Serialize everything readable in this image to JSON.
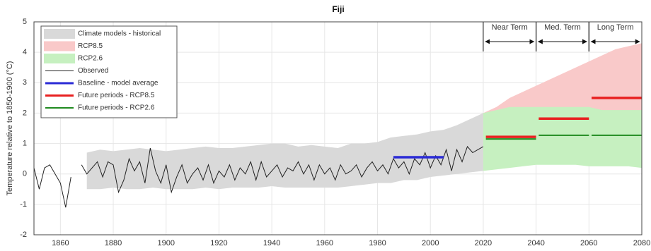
{
  "chart_data": {
    "type": "line",
    "title": "Fiji",
    "y_label": "Temperature relative to 1850-1900 (°C)",
    "xlim": [
      1850,
      2080
    ],
    "ylim": [
      -2,
      5
    ],
    "xticks": [
      1860,
      1880,
      1900,
      1920,
      1940,
      1960,
      1980,
      2000,
      2020,
      2040,
      2060,
      2080
    ],
    "yticks": [
      -2,
      -1,
      0,
      1,
      2,
      3,
      4,
      5
    ],
    "grid": true,
    "legend": "upper left",
    "periods": [
      {
        "label": "Near Term",
        "start": 2020,
        "end": 2040
      },
      {
        "label": "Med. Term",
        "start": 2040,
        "end": 2060
      },
      {
        "label": "Long Term",
        "start": 2060,
        "end": 2080
      }
    ],
    "series": [
      {
        "name": "Climate models - historical",
        "kind": "band",
        "color": "#d9d9d9",
        "x": [
          1870,
          1875,
          1880,
          1885,
          1890,
          1895,
          1900,
          1905,
          1910,
          1915,
          1920,
          1925,
          1930,
          1935,
          1940,
          1945,
          1950,
          1955,
          1960,
          1965,
          1970,
          1975,
          1980,
          1985,
          1990,
          1995,
          2000,
          2005,
          2010,
          2015,
          2020
        ],
        "low": [
          -0.5,
          -0.5,
          -0.45,
          -0.5,
          -0.5,
          -0.45,
          -0.5,
          -0.5,
          -0.5,
          -0.45,
          -0.5,
          -0.45,
          -0.45,
          -0.45,
          -0.4,
          -0.45,
          -0.45,
          -0.45,
          -0.45,
          -0.45,
          -0.4,
          -0.35,
          -0.3,
          -0.3,
          -0.2,
          -0.2,
          -0.1,
          -0.05,
          0.0,
          0.05,
          0.1
        ],
        "high": [
          0.7,
          0.8,
          0.75,
          0.8,
          0.85,
          0.8,
          0.75,
          0.8,
          0.85,
          0.9,
          0.85,
          0.85,
          0.9,
          0.95,
          1.0,
          1.0,
          0.9,
          0.95,
          0.9,
          0.85,
          1.0,
          1.0,
          1.05,
          1.2,
          1.25,
          1.3,
          1.4,
          1.45,
          1.6,
          1.8,
          2.0
        ]
      },
      {
        "name": "RCP8.5",
        "kind": "band",
        "color": "#f9c9c9",
        "x": [
          2020,
          2025,
          2030,
          2035,
          2040,
          2045,
          2050,
          2055,
          2060,
          2065,
          2070,
          2075,
          2080
        ],
        "low": [
          0.3,
          0.4,
          0.5,
          0.6,
          0.75,
          0.9,
          1.0,
          1.1,
          1.2,
          1.3,
          1.4,
          1.5,
          1.6
        ],
        "high": [
          2.0,
          2.2,
          2.5,
          2.7,
          2.9,
          3.1,
          3.3,
          3.5,
          3.7,
          3.9,
          4.1,
          4.2,
          4.3
        ]
      },
      {
        "name": "RCP2.6",
        "kind": "band",
        "color": "#c6f0c0",
        "x": [
          2020,
          2025,
          2030,
          2035,
          2040,
          2045,
          2050,
          2055,
          2060,
          2065,
          2070,
          2075,
          2080
        ],
        "low": [
          0.1,
          0.15,
          0.2,
          0.25,
          0.3,
          0.3,
          0.3,
          0.3,
          0.25,
          0.25,
          0.25,
          0.25,
          0.2
        ],
        "high": [
          2.0,
          2.1,
          2.2,
          2.2,
          2.2,
          2.2,
          2.2,
          2.2,
          2.2,
          2.1,
          2.1,
          2.1,
          2.1
        ]
      },
      {
        "name": "Observed",
        "kind": "line",
        "color": "#222222",
        "x": [
          1850,
          1852,
          1854,
          1856,
          1858,
          1860,
          1862,
          1864,
          1866,
          1868,
          1870,
          1872,
          1874,
          1876,
          1878,
          1880,
          1882,
          1884,
          1886,
          1888,
          1890,
          1892,
          1894,
          1896,
          1898,
          1900,
          1902,
          1904,
          1906,
          1908,
          1910,
          1912,
          1914,
          1916,
          1918,
          1920,
          1922,
          1924,
          1926,
          1928,
          1930,
          1932,
          1934,
          1936,
          1938,
          1940,
          1942,
          1944,
          1946,
          1948,
          1950,
          1952,
          1954,
          1956,
          1958,
          1960,
          1962,
          1964,
          1966,
          1968,
          1970,
          1972,
          1974,
          1976,
          1978,
          1980,
          1982,
          1984,
          1986,
          1988,
          1990,
          1992,
          1994,
          1996,
          1998,
          2000,
          2002,
          2004,
          2006,
          2008,
          2010,
          2012,
          2014,
          2016,
          2018,
          2020
        ],
        "values": [
          0.2,
          -0.5,
          0.2,
          0.3,
          0.0,
          -0.3,
          -1.1,
          -0.1,
          null,
          0.3,
          0.0,
          0.2,
          0.4,
          -0.1,
          0.4,
          0.3,
          -0.6,
          -0.2,
          0.5,
          0.1,
          0.4,
          -0.3,
          0.85,
          0.1,
          -0.3,
          0.3,
          -0.6,
          -0.1,
          0.3,
          -0.3,
          0.0,
          0.2,
          -0.2,
          0.3,
          -0.3,
          0.1,
          -0.1,
          0.3,
          -0.2,
          0.2,
          0.0,
          0.4,
          -0.2,
          0.4,
          -0.1,
          0.1,
          0.3,
          -0.1,
          0.2,
          0.1,
          0.4,
          0.0,
          0.3,
          -0.2,
          0.3,
          0.0,
          0.2,
          -0.2,
          0.3,
          0.0,
          0.1,
          0.3,
          -0.1,
          0.2,
          0.4,
          0.1,
          0.3,
          0.0,
          0.5,
          0.2,
          0.4,
          0.0,
          0.5,
          0.3,
          0.7,
          0.2,
          0.6,
          0.3,
          0.8,
          0.1,
          0.8,
          0.4,
          0.9,
          0.7,
          0.8,
          0.9
        ]
      },
      {
        "name": "Baseline - model average",
        "kind": "segment",
        "color": "#2a2ad6",
        "x_start": [
          1986
        ],
        "x_end": [
          2005
        ],
        "values": [
          0.55
        ]
      },
      {
        "name": "Future periods - RCP8.5",
        "kind": "segment",
        "color": "#e82020",
        "x_start": [
          2021,
          2041,
          2061
        ],
        "x_end": [
          2040,
          2060,
          2080
        ],
        "values": [
          1.22,
          1.82,
          2.5
        ]
      },
      {
        "name": "Future periods - RCP2.6",
        "kind": "segment",
        "color": "#1f8a1f",
        "x_start": [
          2021,
          2041,
          2061
        ],
        "x_end": [
          2040,
          2060,
          2080
        ],
        "values": [
          1.15,
          1.27,
          1.27
        ]
      }
    ]
  }
}
